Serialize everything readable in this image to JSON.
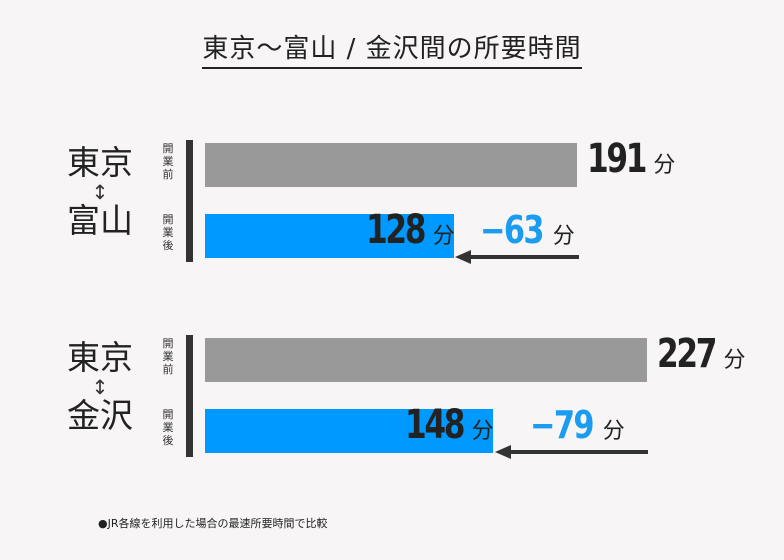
{
  "title": "東京〜富山 / 金沢間の所要時間",
  "footnote": "●JR各線を利用した場合の最速所要時間で比較",
  "colors": {
    "before": "#999999",
    "after": "#0099ff",
    "accent": "#1a9cf0",
    "text": "#222222"
  },
  "unit": "分",
  "before_label": [
    "開",
    "業",
    "前"
  ],
  "after_label": [
    "開",
    "業",
    "後"
  ],
  "routes": [
    {
      "from": "東京",
      "arrow": "↕",
      "to": "富山",
      "before": 191,
      "after": 128,
      "diff": "−63",
      "before_text": "191",
      "after_text": "128"
    },
    {
      "from": "東京",
      "arrow": "↕",
      "to": "金沢",
      "before": 227,
      "after": 148,
      "diff": "−79",
      "before_text": "227",
      "after_text": "148"
    }
  ],
  "chart_data": {
    "type": "bar",
    "title": "東京〜富山 / 金沢間の所要時間",
    "categories": [
      "東京↕富山",
      "東京↕金沢"
    ],
    "series": [
      {
        "name": "開業前",
        "values": [
          191,
          227
        ]
      },
      {
        "name": "開業後",
        "values": [
          128,
          148
        ]
      }
    ],
    "differences": [
      -63,
      -79
    ],
    "unit": "分",
    "orientation": "horizontal",
    "grid": false
  }
}
